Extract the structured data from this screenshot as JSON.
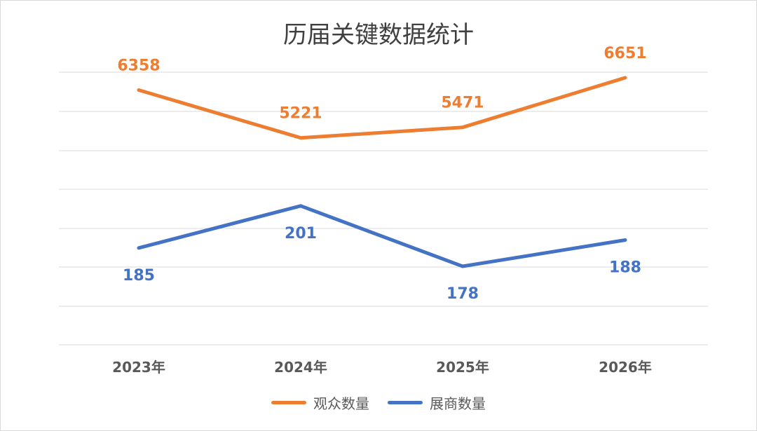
{
  "chart_data": {
    "type": "line",
    "title": "历届关键数据统计",
    "categories": [
      "2023年",
      "2024年",
      "2025年",
      "2026年"
    ],
    "series": [
      {
        "name": "观众数量",
        "values": [
          6358,
          5221,
          5471,
          6651
        ],
        "labels": [
          "6358",
          "5221",
          "5471",
          "6651"
        ],
        "color": "#ed7d31",
        "label_position": "above"
      },
      {
        "name": "展商数量",
        "values": [
          185,
          201,
          178,
          188
        ],
        "labels": [
          "185",
          "201",
          "178",
          "188"
        ],
        "color": "#4472c4",
        "label_position": "below"
      }
    ],
    "grid": true,
    "legend": "bottom"
  }
}
